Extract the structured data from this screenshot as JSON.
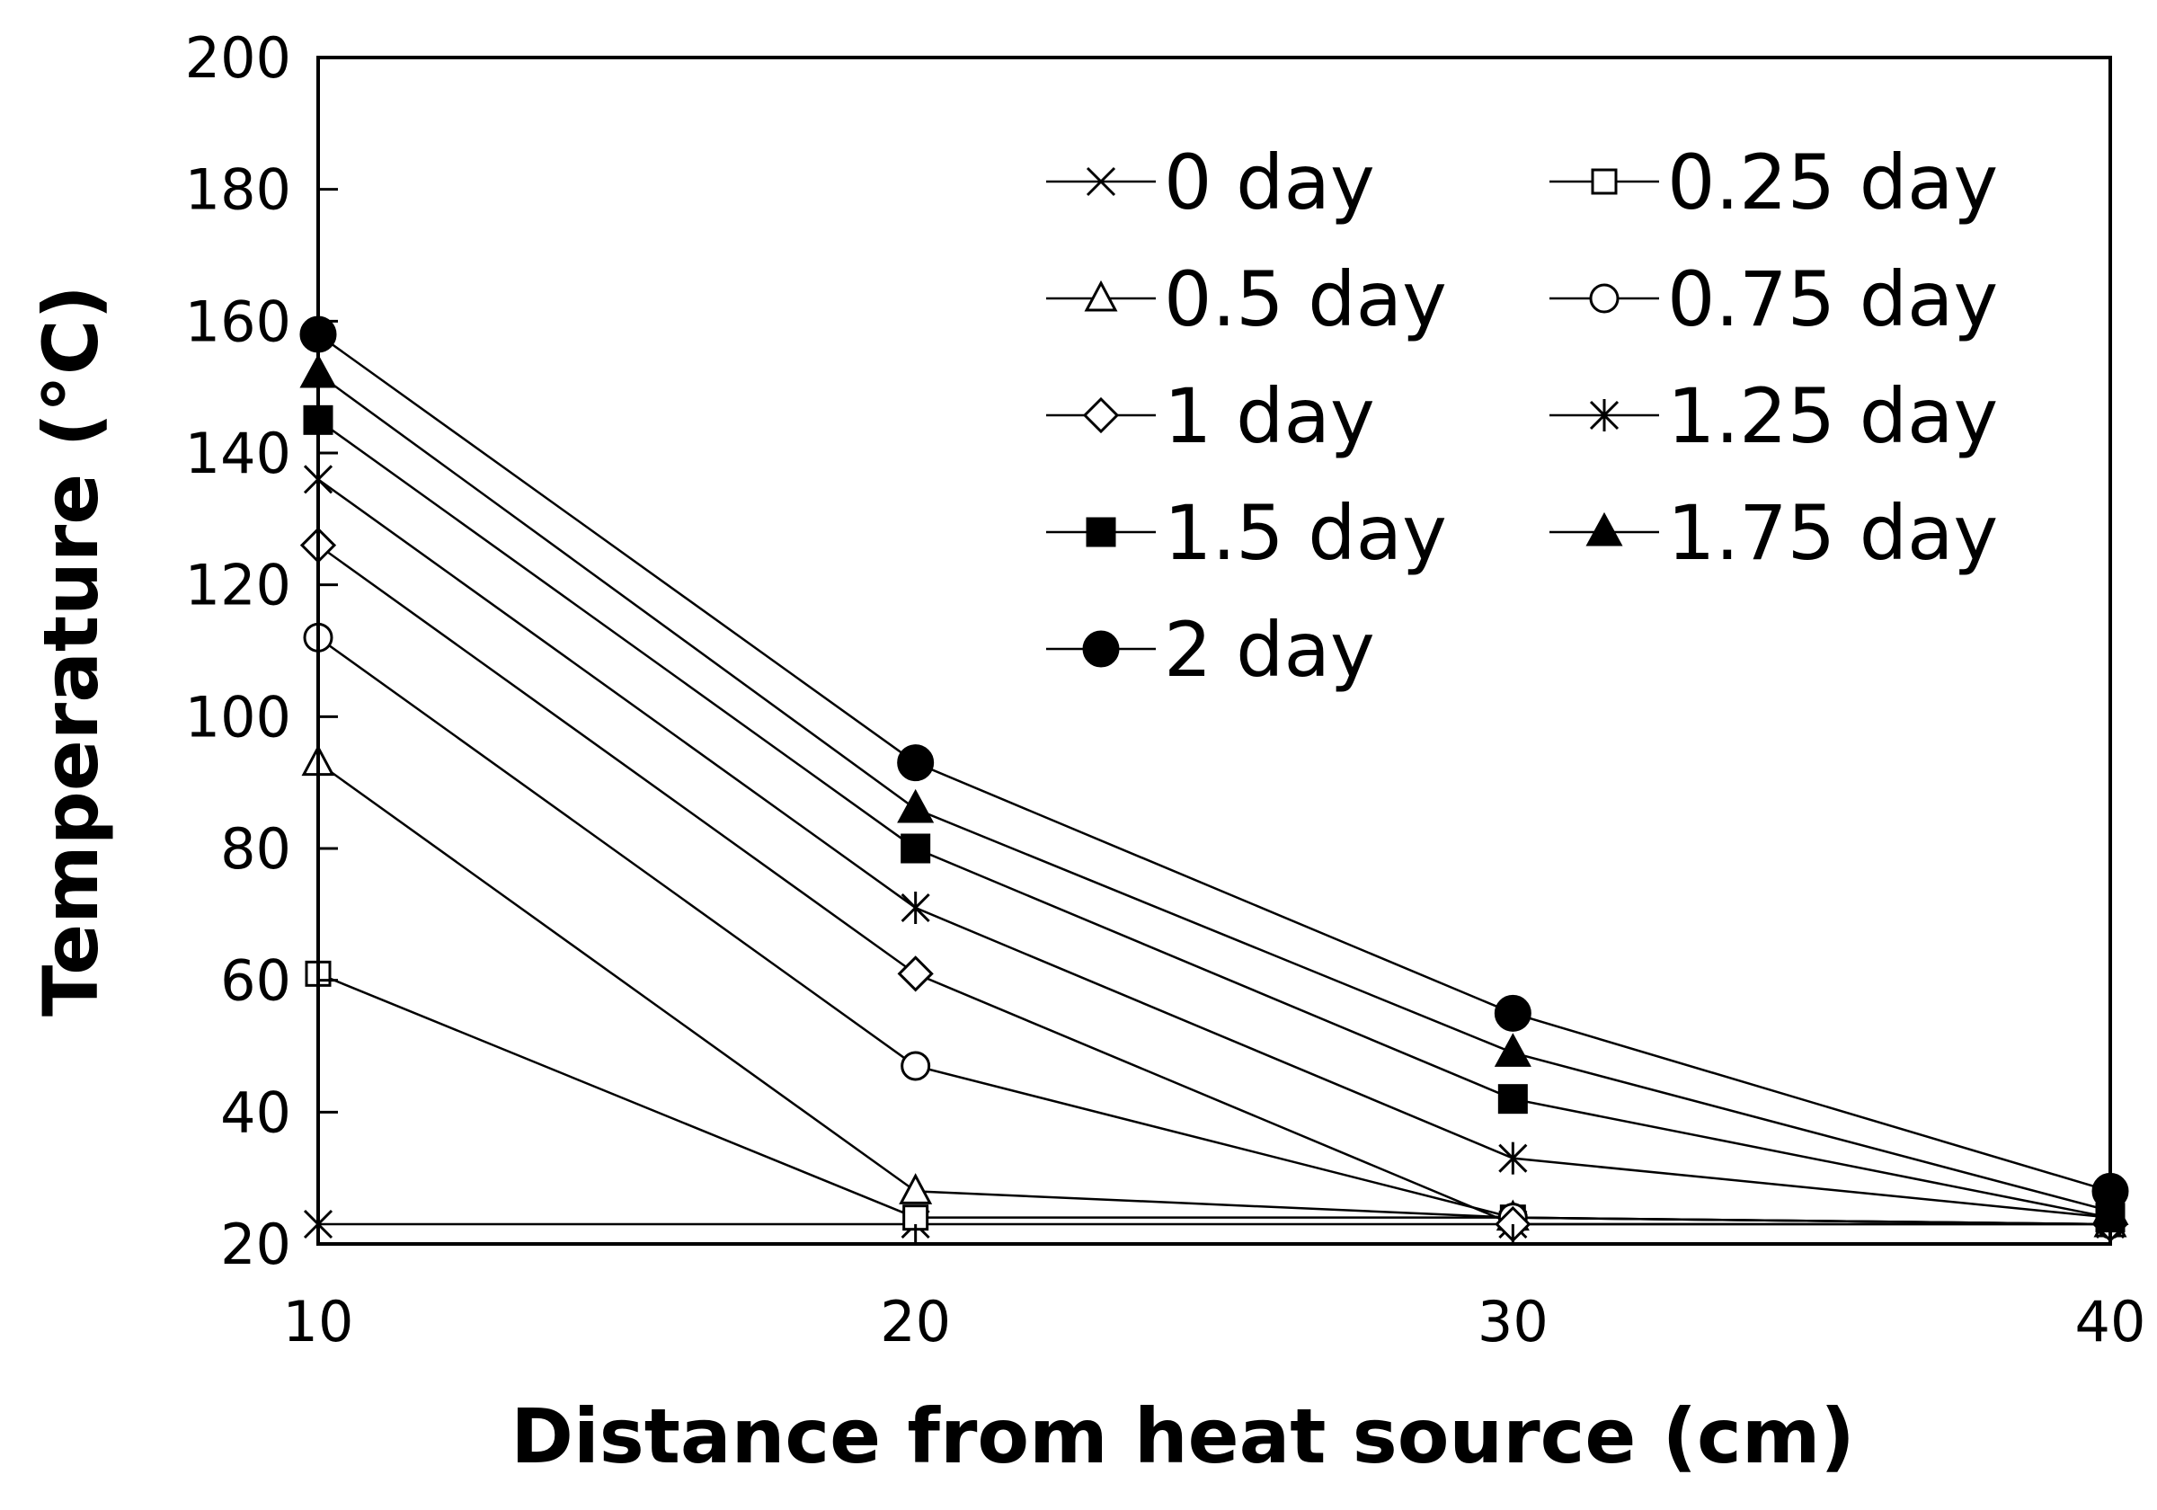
{
  "chart_data": {
    "type": "line",
    "title": "",
    "xlabel": "Distance from heat source (cm)",
    "ylabel": "Temperature (°C)",
    "x": [
      10,
      20,
      30,
      40
    ],
    "xlim": [
      10,
      40
    ],
    "ylim": [
      20,
      200
    ],
    "xticks": [
      10,
      20,
      30,
      40
    ],
    "yticks": [
      20,
      40,
      60,
      80,
      100,
      120,
      140,
      160,
      180,
      200
    ],
    "grid": false,
    "legend_position": "top-right",
    "series": [
      {
        "name": "0 day",
        "marker": "x",
        "values": [
          23,
          23,
          23,
          23
        ]
      },
      {
        "name": "0.25 day",
        "marker": "square-open",
        "values": [
          61,
          24,
          24,
          23
        ]
      },
      {
        "name": "0.5 day",
        "marker": "triangle-open",
        "values": [
          93,
          28,
          24,
          23
        ]
      },
      {
        "name": "0.75 day",
        "marker": "circle-open",
        "values": [
          112,
          47,
          24,
          23
        ]
      },
      {
        "name": "1 day",
        "marker": "diamond-open",
        "values": [
          126,
          61,
          23,
          23
        ]
      },
      {
        "name": "1.25  day",
        "marker": "asterisk",
        "values": [
          136,
          71,
          33,
          24
        ]
      },
      {
        "name": "1.5  day",
        "marker": "square-filled",
        "values": [
          145,
          80,
          42,
          24
        ]
      },
      {
        "name": "1.75  day",
        "marker": "triangle-filled",
        "values": [
          152,
          86,
          49,
          25
        ]
      },
      {
        "name": "2 day",
        "marker": "circle-filled",
        "values": [
          158,
          93,
          55,
          28
        ]
      }
    ]
  }
}
